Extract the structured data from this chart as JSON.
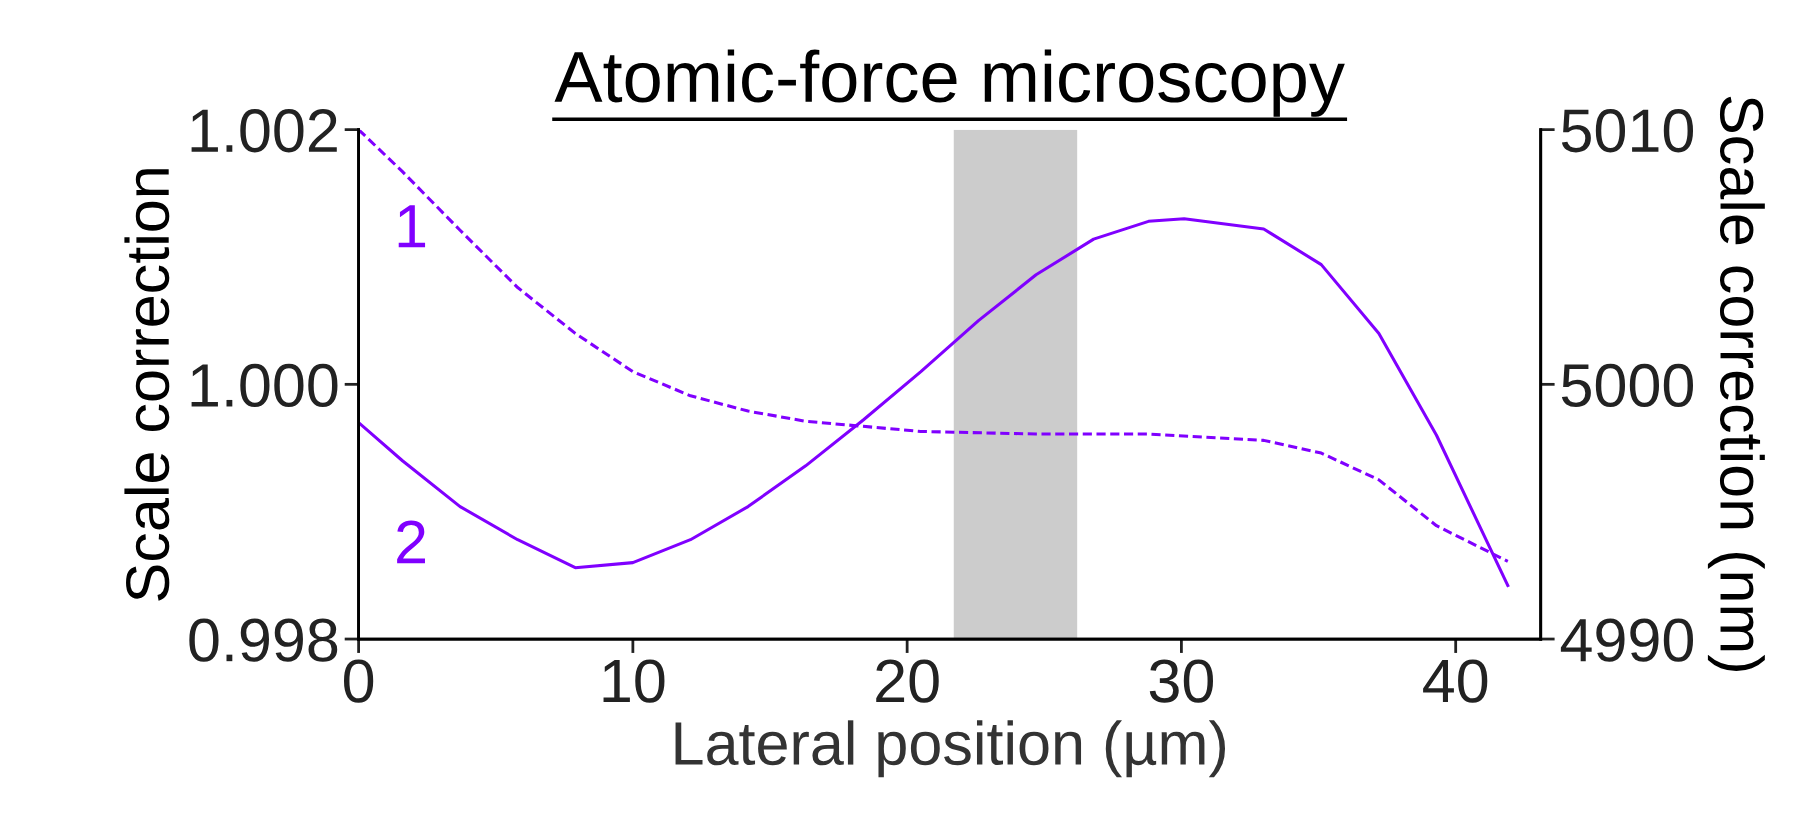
{
  "chart_data": {
    "type": "line",
    "title": "Atomic-force microscopy",
    "xlabel": "Lateral position (µm)",
    "ylabel": "Scale correction",
    "y2label": "Scale correction (nm)",
    "xlim": [
      0,
      43.1
    ],
    "xticks": [
      0,
      10,
      20,
      30,
      40
    ],
    "ylim": [
      0.998,
      1.002
    ],
    "yticks": [
      {
        "value": 0.998,
        "label": "0.998"
      },
      {
        "value": 1.0,
        "label": "1.000"
      },
      {
        "value": 1.002,
        "label": "1.002"
      }
    ],
    "y2lim": [
      4990,
      5010
    ],
    "y2ticks": [
      4990,
      5000,
      5010
    ],
    "grid": false,
    "legend": false,
    "series": [
      {
        "color": "#8000ff",
        "line_style": "dashed",
        "x": [
          0,
          1.6,
          3.7,
          5.8,
          7.9,
          10.0,
          12.1,
          14.2,
          16.3,
          20.5,
          24.7,
          28.8,
          33.0,
          35.1,
          37.2,
          39.3,
          41.9
        ],
        "values": [
          1.002,
          1.00167,
          1.00121,
          1.00076,
          1.0004,
          1.0001,
          0.99991,
          0.99979,
          0.99971,
          0.99963,
          0.99961,
          0.99961,
          0.99956,
          0.99946,
          0.99925,
          0.99889,
          0.99861
        ]
      },
      {
        "color": "#8000ff",
        "line_style": "solid",
        "axis": "y2",
        "x": [
          0,
          1.6,
          3.7,
          5.8,
          7.9,
          10.0,
          12.1,
          14.2,
          16.3,
          18.4,
          20.5,
          22.6,
          24.7,
          26.8,
          28.8,
          30.1,
          33.0,
          35.1,
          37.2,
          39.3,
          41.9
        ],
        "values": [
          4998.5,
          4997.0,
          4995.2,
          4993.9,
          4992.8,
          4993.0,
          4993.9,
          4995.2,
          4996.8,
          4998.6,
          5000.5,
          5002.5,
          5004.3,
          5005.7,
          5006.4,
          5006.5,
          5006.1,
          5004.7,
          5002.0,
          4998.0,
          4992.1
        ]
      }
    ],
    "bands": [
      {
        "axis": "x",
        "from": 21.7,
        "to": 26.2,
        "color": "#cccccc"
      }
    ],
    "annotations": [
      "1",
      "2"
    ]
  }
}
